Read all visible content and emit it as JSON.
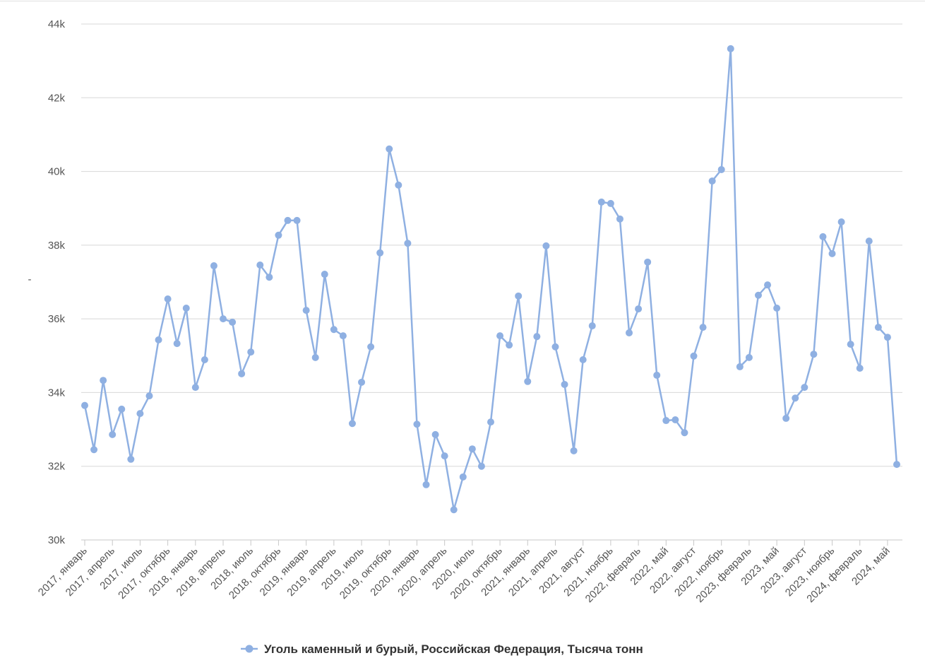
{
  "chart_data": {
    "type": "line",
    "y_label": "-",
    "categories": [
      "2017, январь",
      null,
      null,
      "2017, апрель",
      null,
      null,
      "2017, июль",
      null,
      null,
      "2017, октябрь",
      null,
      null,
      "2018, январь",
      null,
      null,
      "2018, апрель",
      null,
      null,
      "2018, июль",
      null,
      null,
      "2018, октябрь",
      null,
      null,
      "2019, январь",
      null,
      null,
      "2019, апрель",
      null,
      null,
      "2019, июль",
      null,
      null,
      "2019, октябрь",
      null,
      null,
      "2020, январь",
      null,
      null,
      "2020, апрель",
      null,
      null,
      "2020, июль",
      null,
      null,
      "2020, октябрь",
      null,
      null,
      "2021, январь",
      null,
      null,
      "2021, апрель",
      null,
      null,
      "2021, август",
      null,
      null,
      "2021, ноябрь",
      null,
      null,
      "2022, февраль",
      null,
      null,
      "2022, май",
      null,
      null,
      "2022, август",
      null,
      null,
      "2022, ноябрь",
      null,
      null,
      "2023, февраль",
      null,
      null,
      "2023, май",
      null,
      null,
      "2023, август",
      null,
      null,
      "2023, ноябрь",
      null,
      null,
      "2024, февраль",
      null,
      null,
      "2024, май",
      null
    ],
    "series": [
      {
        "name": "Уголь каменный и бурый, Российская Федерация, Тысяча тонн",
        "color": "#8fb0e2",
        "values": [
          33650,
          32450,
          34330,
          32860,
          33550,
          32190,
          33430,
          33910,
          35430,
          36540,
          35330,
          36290,
          34140,
          34890,
          37440,
          36000,
          35910,
          34510,
          35100,
          37460,
          37130,
          38270,
          38670,
          38670,
          36230,
          34950,
          37210,
          35710,
          35540,
          33160,
          34280,
          35240,
          37790,
          40610,
          39630,
          38050,
          33140,
          31500,
          32860,
          32280,
          30820,
          31710,
          32470,
          32000,
          33200,
          35540,
          35290,
          36620,
          34300,
          35520,
          37980,
          35240,
          34220,
          32420,
          34890,
          35810,
          39170,
          39130,
          38710,
          35620,
          36270,
          37540,
          34470,
          33240,
          33260,
          32910,
          34990,
          35770,
          39740,
          40050,
          43330,
          34700,
          34950,
          36640,
          36920,
          36290,
          33300,
          33850,
          34140,
          35040,
          38230,
          37770,
          38630,
          35310,
          34660,
          38110,
          35770,
          35500,
          32050
        ]
      }
    ],
    "ylim": [
      30000,
      44000
    ],
    "yticks": [
      {
        "value": 30000,
        "label": "30k"
      },
      {
        "value": 32000,
        "label": "32k"
      },
      {
        "value": 34000,
        "label": "34k"
      },
      {
        "value": 36000,
        "label": "36k"
      },
      {
        "value": 38000,
        "label": "38k"
      },
      {
        "value": 40000,
        "label": "40k"
      },
      {
        "value": 42000,
        "label": "42k"
      },
      {
        "value": 44000,
        "label": "44k"
      }
    ],
    "grid": true
  }
}
